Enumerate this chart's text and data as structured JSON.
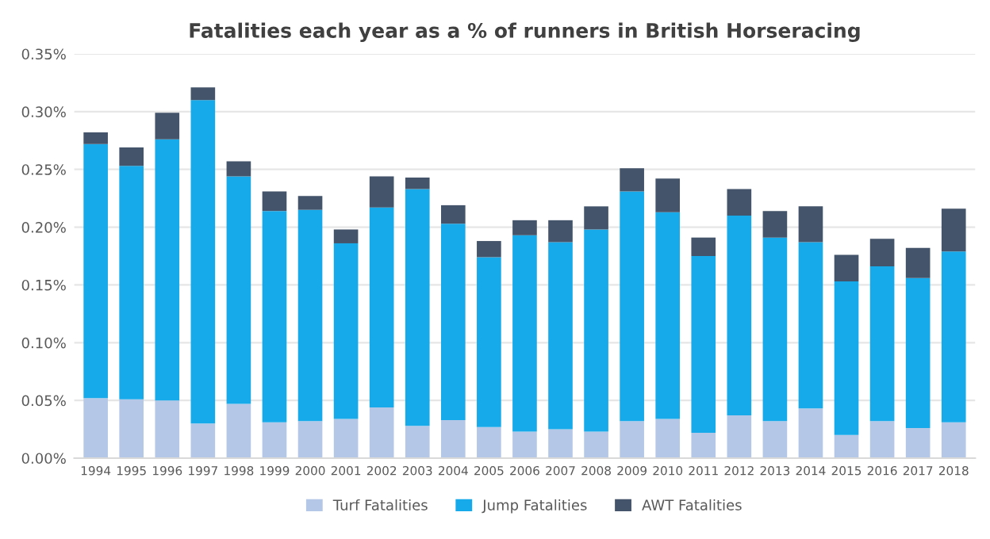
{
  "chart_data": {
    "type": "bar",
    "title": "Fatalities each year as a % of runners in British Horseracing",
    "stacked": true,
    "categories": [
      "1994",
      "1995",
      "1996",
      "1997",
      "1998",
      "1999",
      "2000",
      "2001",
      "2002",
      "2003",
      "2004",
      "2005",
      "2006",
      "2007",
      "2008",
      "2009",
      "2010",
      "2011",
      "2012",
      "2013",
      "2014",
      "2015",
      "2016",
      "2017",
      "2018"
    ],
    "series": [
      {
        "name": "Turf Fatalities",
        "color": "#b4c7e7",
        "values": [
          0.052,
          0.051,
          0.05,
          0.03,
          0.047,
          0.031,
          0.032,
          0.034,
          0.044,
          0.028,
          0.033,
          0.027,
          0.023,
          0.025,
          0.023,
          0.032,
          0.034,
          0.022,
          0.037,
          0.032,
          0.043,
          0.02,
          0.032,
          0.026,
          0.031
        ]
      },
      {
        "name": "Jump Fatalities",
        "color": "#16aaea",
        "values": [
          0.22,
          0.202,
          0.226,
          0.28,
          0.197,
          0.183,
          0.183,
          0.152,
          0.173,
          0.205,
          0.17,
          0.147,
          0.17,
          0.162,
          0.175,
          0.199,
          0.179,
          0.153,
          0.173,
          0.159,
          0.144,
          0.133,
          0.134,
          0.13,
          0.148
        ]
      },
      {
        "name": "AWT Fatalities",
        "color": "#44546a",
        "values": [
          0.01,
          0.016,
          0.023,
          0.011,
          0.013,
          0.017,
          0.012,
          0.012,
          0.027,
          0.01,
          0.016,
          0.014,
          0.013,
          0.019,
          0.02,
          0.02,
          0.029,
          0.016,
          0.023,
          0.023,
          0.031,
          0.023,
          0.024,
          0.026,
          0.037
        ]
      }
    ],
    "ylim": [
      0,
      0.35
    ],
    "yticks": [
      {
        "value": 0,
        "label": "0.00%"
      },
      {
        "value": 0.05,
        "label": "0.05%"
      },
      {
        "value": 0.1,
        "label": "0.10%"
      },
      {
        "value": 0.15,
        "label": "0.15%"
      },
      {
        "value": 0.2,
        "label": "0.20%"
      },
      {
        "value": 0.25,
        "label": "0.25%"
      },
      {
        "value": 0.3,
        "label": "0.30%"
      },
      {
        "value": 0.35,
        "label": "0.35%"
      }
    ],
    "grid": "y",
    "legend": "bottom"
  }
}
